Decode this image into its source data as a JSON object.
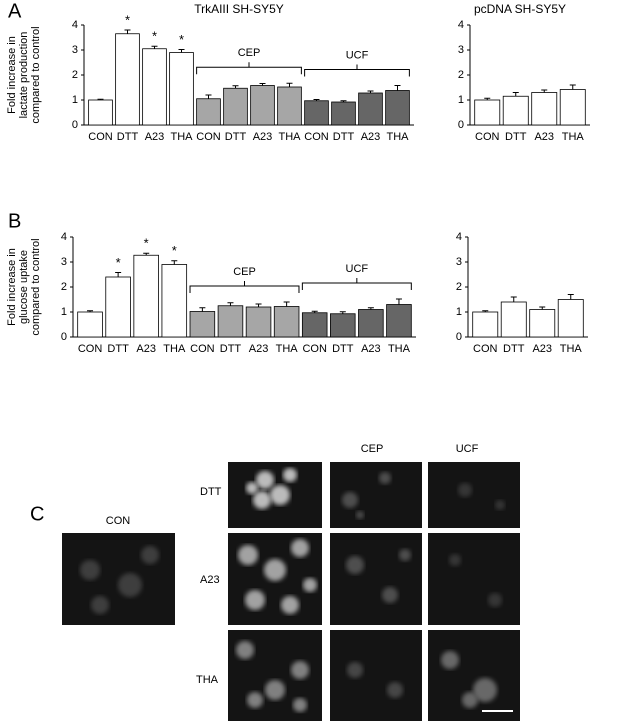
{
  "panels": [
    "A",
    "B",
    "C"
  ],
  "chart_data": [
    {
      "type": "bar",
      "title": "TrkAIII SH-SY5Y",
      "y_label": "Fold increase in lactate production compared to control",
      "ylim": [
        0,
        4
      ],
      "yticks": [
        0,
        1,
        2,
        3,
        4
      ],
      "series": [
        {
          "color": "#ffffff",
          "categories": [
            "CON",
            "DTT",
            "A23",
            "THA"
          ],
          "values": [
            1.0,
            3.65,
            3.05,
            2.9
          ],
          "errors": [
            0.03,
            0.15,
            0.1,
            0.12
          ],
          "significance": [
            null,
            "*",
            "*",
            "*"
          ]
        },
        {
          "name": "CEP",
          "color": "#a6a6a6",
          "categories": [
            "CON",
            "DTT",
            "A23",
            "THA"
          ],
          "values": [
            1.05,
            1.47,
            1.58,
            1.52
          ],
          "errors": [
            0.15,
            0.1,
            0.08,
            0.15
          ]
        },
        {
          "name": "UCF",
          "color": "#666666",
          "categories": [
            "CON",
            "DTT",
            "A23",
            "THA"
          ],
          "values": [
            0.97,
            0.92,
            1.28,
            1.38
          ],
          "errors": [
            0.05,
            0.05,
            0.08,
            0.2
          ]
        }
      ]
    },
    {
      "type": "bar",
      "title": "pcDNA SH-SY5Y",
      "ylim": [
        0,
        4
      ],
      "yticks": [
        0,
        1,
        2,
        3,
        4
      ],
      "series": [
        {
          "color": "#ffffff",
          "categories": [
            "CON",
            "DTT",
            "A23",
            "THA"
          ],
          "values": [
            1.0,
            1.15,
            1.3,
            1.42
          ],
          "errors": [
            0.07,
            0.15,
            0.1,
            0.18
          ]
        }
      ]
    },
    {
      "type": "bar",
      "y_label": "Fold increase in glucose uptake compared to control",
      "ylim": [
        0,
        4
      ],
      "yticks": [
        0,
        1,
        2,
        3,
        4
      ],
      "series": [
        {
          "color": "#ffffff",
          "categories": [
            "CON",
            "DTT",
            "A23",
            "THA"
          ],
          "values": [
            1.0,
            2.4,
            3.27,
            2.9
          ],
          "errors": [
            0.05,
            0.18,
            0.08,
            0.15
          ],
          "significance": [
            null,
            "*",
            "*",
            "*"
          ]
        },
        {
          "name": "CEP",
          "color": "#a6a6a6",
          "categories": [
            "CON",
            "DTT",
            "A23",
            "THA"
          ],
          "values": [
            1.02,
            1.25,
            1.2,
            1.22
          ],
          "errors": [
            0.15,
            0.12,
            0.12,
            0.18
          ]
        },
        {
          "name": "UCF",
          "color": "#666666",
          "categories": [
            "CON",
            "DTT",
            "A23",
            "THA"
          ],
          "values": [
            0.97,
            0.93,
            1.1,
            1.3
          ],
          "errors": [
            0.06,
            0.08,
            0.07,
            0.22
          ]
        }
      ]
    },
    {
      "type": "bar",
      "ylim": [
        0,
        4
      ],
      "yticks": [
        0,
        1,
        2,
        3,
        4
      ],
      "series": [
        {
          "color": "#ffffff",
          "categories": [
            "CON",
            "DTT",
            "A23",
            "THA"
          ],
          "values": [
            1.0,
            1.4,
            1.1,
            1.5
          ],
          "errors": [
            0.05,
            0.2,
            0.1,
            0.2
          ]
        }
      ]
    }
  ],
  "micrographs": {
    "control_label": "CON",
    "column_labels": [
      "CEP",
      "UCF"
    ],
    "row_labels": [
      "DTT",
      "A23",
      "THA"
    ]
  }
}
